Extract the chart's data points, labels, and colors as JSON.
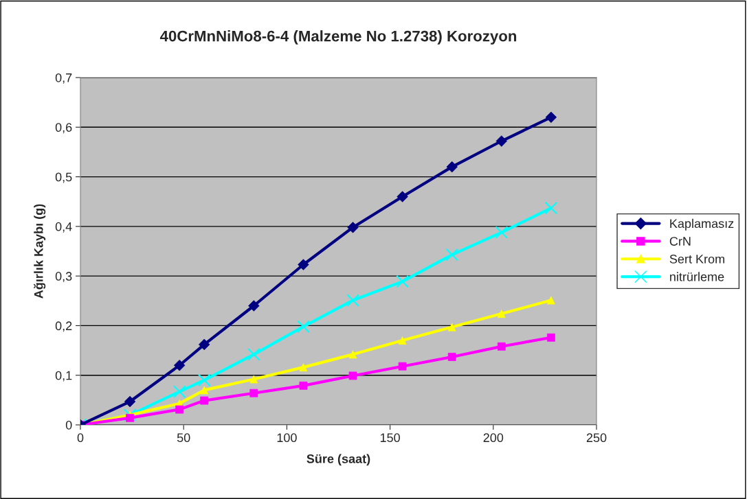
{
  "chart_data": {
    "type": "line",
    "title": "40CrMnNiMo8-6-4 (Malzeme No 1.2738) Korozyon",
    "xlabel": "Süre (saat)",
    "ylabel": "Ağırlık Kaybı (g)",
    "x": [
      0,
      24,
      48,
      60,
      84,
      108,
      132,
      156,
      180,
      204,
      228
    ],
    "series": [
      {
        "name": "Kaplamasız",
        "color": "#000080",
        "marker": "diamond",
        "values": [
          0,
          0.047,
          0.12,
          0.162,
          0.24,
          0.323,
          0.398,
          0.46,
          0.52,
          0.572,
          0.62
        ]
      },
      {
        "name": "CrN",
        "color": "#ff00ff",
        "marker": "square",
        "values": [
          0,
          0.014,
          0.031,
          0.049,
          0.064,
          0.079,
          0.099,
          0.118,
          0.137,
          0.158,
          0.176
        ]
      },
      {
        "name": "Sert Krom",
        "color": "#ffff00",
        "marker": "triangle",
        "values": [
          0,
          0.02,
          0.043,
          0.07,
          0.092,
          0.116,
          0.142,
          0.17,
          0.197,
          0.224,
          0.251
        ]
      },
      {
        "name": "nitrürleme",
        "color": "#00ffff",
        "marker": "cross",
        "values": [
          0,
          0.02,
          0.067,
          0.09,
          0.142,
          0.198,
          0.251,
          0.289,
          0.343,
          0.388,
          0.437
        ]
      }
    ],
    "xlim": [
      0,
      250
    ],
    "xticks": [
      0,
      50,
      100,
      150,
      200,
      250
    ],
    "ylim": [
      0,
      0.7
    ],
    "yticks": [
      {
        "value": 0,
        "label": "0"
      },
      {
        "value": 0.1,
        "label": "0,1"
      },
      {
        "value": 0.2,
        "label": "0,2"
      },
      {
        "value": 0.3,
        "label": "0,3"
      },
      {
        "value": 0.4,
        "label": "0,4"
      },
      {
        "value": 0.5,
        "label": "0,5"
      },
      {
        "value": 0.6,
        "label": "0,6"
      },
      {
        "value": 0.7,
        "label": "0,7"
      }
    ],
    "grid": "y",
    "legend": "right",
    "line_style": "solid"
  }
}
